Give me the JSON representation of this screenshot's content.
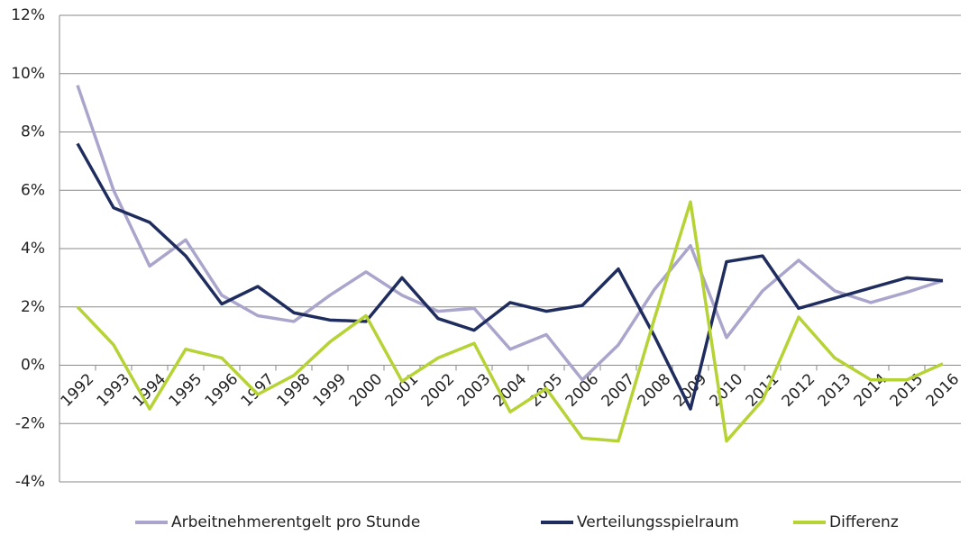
{
  "chart_data": {
    "type": "line",
    "categories": [
      "1992",
      "1993",
      "1994",
      "1995",
      "1996",
      "1997",
      "1998",
      "1999",
      "2000",
      "2001",
      "2002",
      "2003",
      "2004",
      "2005",
      "2006",
      "2007",
      "2008",
      "2009",
      "2010",
      "2011",
      "2012",
      "2013",
      "2014",
      "2015",
      "2016"
    ],
    "series": [
      {
        "name": "Arbeitnehmerentgelt pro Stunde",
        "color": "#aaa5cc",
        "values": [
          9.6,
          6.0,
          3.4,
          4.3,
          2.4,
          1.7,
          1.5,
          2.4,
          3.2,
          2.4,
          1.85,
          1.95,
          0.55,
          1.05,
          -0.5,
          0.7,
          2.6,
          4.1,
          0.95,
          2.55,
          3.6,
          2.55,
          2.15,
          2.5,
          2.9
        ]
      },
      {
        "name": "Verteilungsspielraum",
        "color": "#1f2d5e",
        "values": [
          7.6,
          5.4,
          4.9,
          3.75,
          2.1,
          2.7,
          1.8,
          1.55,
          1.5,
          3.0,
          1.6,
          1.2,
          2.15,
          1.85,
          2.05,
          3.3,
          1.0,
          -1.5,
          3.55,
          3.75,
          1.95,
          2.3,
          2.65,
          3.0,
          2.9
        ]
      },
      {
        "name": "Differenz",
        "color": "#b5d334",
        "values": [
          2.0,
          0.7,
          -1.5,
          0.55,
          0.25,
          -1.0,
          -0.35,
          0.8,
          1.7,
          -0.55,
          0.25,
          0.75,
          -1.6,
          -0.8,
          -2.5,
          -2.6,
          1.6,
          5.6,
          -2.6,
          -1.2,
          1.65,
          0.25,
          -0.5,
          -0.5,
          0.05
        ]
      }
    ],
    "ylim": [
      -4,
      12
    ],
    "yticks": [
      {
        "value": -4,
        "label": "-4%"
      },
      {
        "value": -2,
        "label": "-2%"
      },
      {
        "value": 0,
        "label": "0%"
      },
      {
        "value": 2,
        "label": "2%"
      },
      {
        "value": 4,
        "label": "4%"
      },
      {
        "value": 6,
        "label": "6%"
      },
      {
        "value": 8,
        "label": "8%"
      },
      {
        "value": 10,
        "label": "10%"
      },
      {
        "value": 12,
        "label": "12%"
      }
    ],
    "grid": true,
    "legend": "bottom"
  }
}
